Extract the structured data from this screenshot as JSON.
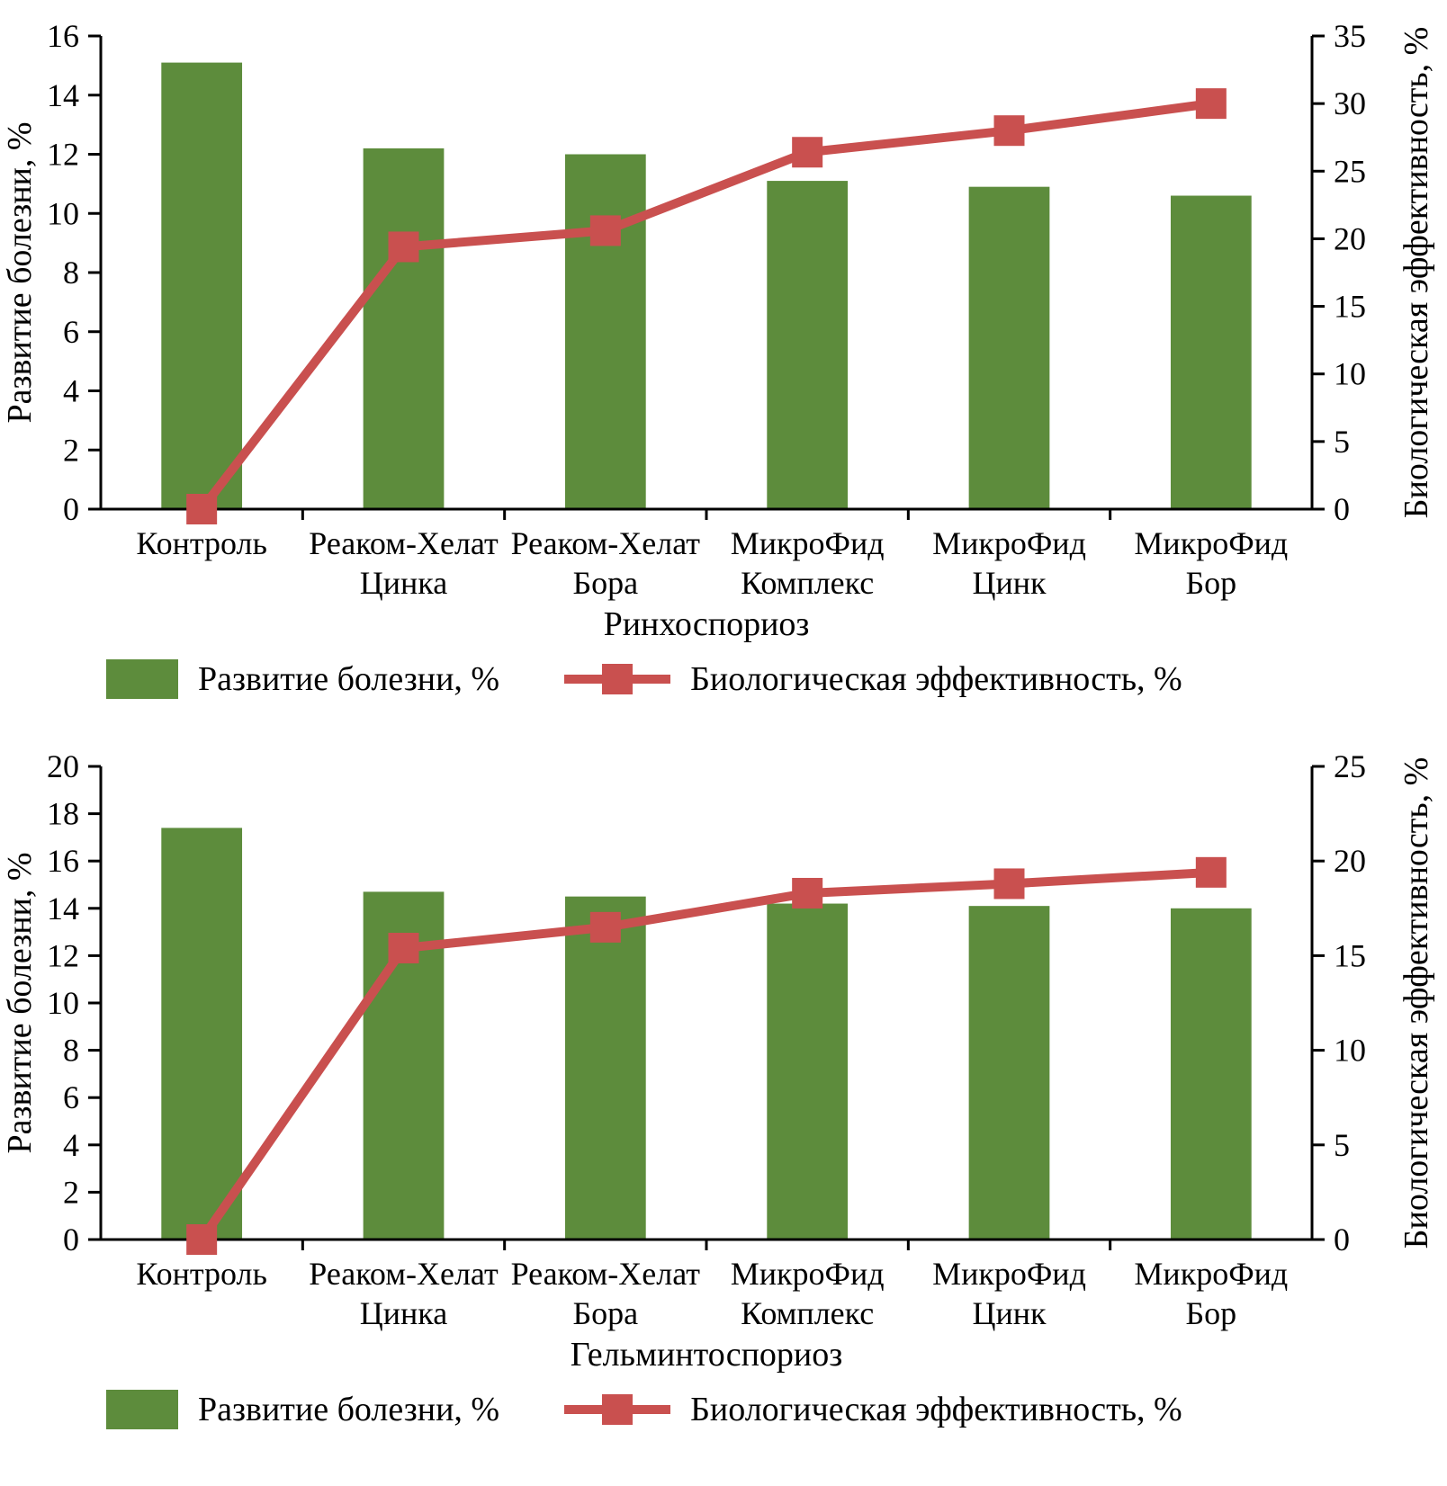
{
  "colors": {
    "bar_green": "#5d8c3c",
    "line_red": "#c9504f",
    "axis_black": "#000000",
    "background": "#ffffff"
  },
  "chart_data": [
    {
      "type": "bar",
      "combo": "bar+line",
      "categories": [
        "Контроль",
        "Реаком-Хелат\nЦинка",
        "Реаком-Хелат\nБора",
        "МикроФид\nКомплекс",
        "МикроФид\nЦинк",
        "МикроФид\nБор"
      ],
      "series": [
        {
          "name": "Развитие болезни, %",
          "type": "bar",
          "axis": "left",
          "color": "#5d8c3c",
          "values": [
            15.1,
            12.2,
            12.0,
            11.1,
            10.9,
            10.6
          ]
        },
        {
          "name": "Биологическая эффективность, %",
          "type": "line",
          "axis": "right",
          "color": "#c9504f",
          "values": [
            0,
            19.4,
            20.6,
            26.4,
            28.0,
            30.0
          ]
        }
      ],
      "xlabel": "Ринхоспориоз",
      "ylabel_left": "Развитие болезни, %",
      "ylabel_right": "Биологическая эффективность, %",
      "ylim_left": [
        0,
        16
      ],
      "ytick_left": 2,
      "ylim_right": [
        0,
        35
      ],
      "ytick_right": 5,
      "grid": false,
      "legend_position": "bottom"
    },
    {
      "type": "bar",
      "combo": "bar+line",
      "categories": [
        "Контроль",
        "Реаком-Хелат\nЦинка",
        "Реаком-Хелат\nБора",
        "МикроФид\nКомплекс",
        "МикроФид\nЦинк",
        "МикроФид\nБор"
      ],
      "series": [
        {
          "name": "Развитие болезни, %",
          "type": "bar",
          "axis": "left",
          "color": "#5d8c3c",
          "values": [
            17.4,
            14.7,
            14.5,
            14.2,
            14.1,
            14.0
          ]
        },
        {
          "name": "Биологическая эффективность, %",
          "type": "line",
          "axis": "right",
          "color": "#c9504f",
          "values": [
            0,
            15.4,
            16.5,
            18.3,
            18.8,
            19.4
          ]
        }
      ],
      "xlabel": "Гельминтоспориоз",
      "ylabel_left": "Развитие болезни, %",
      "ylabel_right": "Биологическая эффективность, %",
      "ylim_left": [
        0,
        20
      ],
      "ytick_left": 2,
      "ylim_right": [
        0,
        25
      ],
      "ytick_right": 5,
      "grid": false,
      "legend_position": "bottom"
    }
  ]
}
